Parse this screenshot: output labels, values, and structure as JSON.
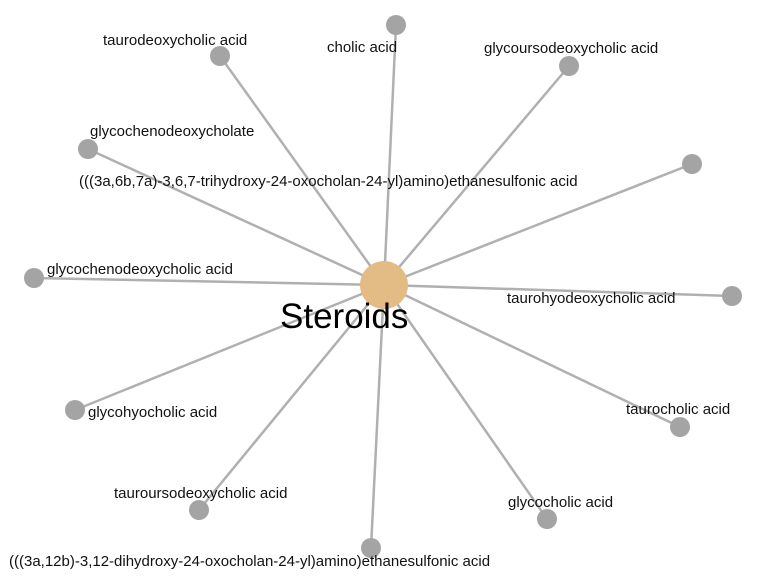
{
  "network": {
    "hub": {
      "label": "Steroids",
      "color": "#e2bb85"
    },
    "node_color": "#a4a4a4",
    "edge_color": "#b0b0b0",
    "nodes": [
      {
        "id": "taurodeoxycholic",
        "label": "taurodeoxycholic acid"
      },
      {
        "id": "cholic",
        "label": "cholic acid"
      },
      {
        "id": "glycoursodeoxycholic",
        "label": "glycoursodeoxycholic acid"
      },
      {
        "id": "glycochenodeoxycholate",
        "label": "glycochenodeoxycholate"
      },
      {
        "id": "trihydroxy-ethanesulfonic",
        "label": "(((3a,6b,7a)-3,6,7-trihydroxy-24-oxocholan-24-yl)amino)ethanesulfonic acid"
      },
      {
        "id": "glycochenodeoxycholic",
        "label": "glycochenodeoxycholic acid"
      },
      {
        "id": "taurohyodeoxycholic",
        "label": "taurohyodeoxycholic acid"
      },
      {
        "id": "glycohyocholic",
        "label": "glycohyocholic acid"
      },
      {
        "id": "taurocholic",
        "label": "taurocholic acid"
      },
      {
        "id": "tauroursodeoxycholic",
        "label": "tauroursodeoxycholic acid"
      },
      {
        "id": "glycocholic",
        "label": "glycocholic acid"
      },
      {
        "id": "dihydroxy-ethanesulfonic",
        "label": "(((3a,12b)-3,12-dihydroxy-24-oxocholan-24-yl)amino)ethanesulfonic acid"
      }
    ]
  }
}
